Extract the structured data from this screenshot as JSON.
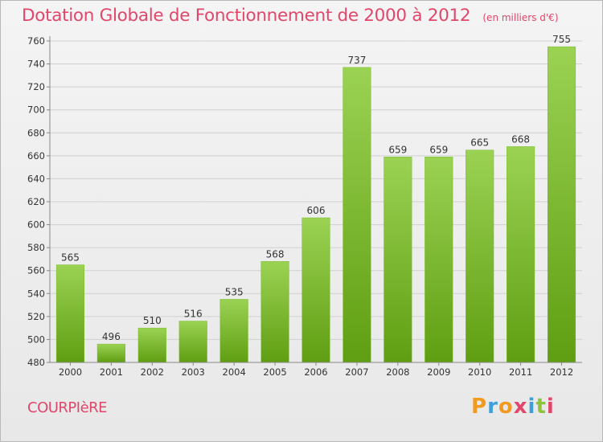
{
  "header": {
    "title": "Dotation Globale de Fonctionnement de 2000 à 2012",
    "unit": "(en milliers d'€)"
  },
  "footer": {
    "commune": "COURPIèRE",
    "logo": "Proxiti"
  },
  "colors": {
    "accent": "#e0476a",
    "bar_top": "#9bd253",
    "bar_bottom": "#5f9e12",
    "logo_letters": [
      "#f29a1f",
      "#3fa0d9",
      "#f29a1f",
      "#e0476a",
      "#3fa0d9",
      "#8cc43c",
      "#e0476a"
    ]
  },
  "chart_data": {
    "type": "bar",
    "title": "Dotation Globale de Fonctionnement de 2000 à 2012",
    "xlabel": "",
    "ylabel": "",
    "ylim": [
      480,
      760
    ],
    "yticks": [
      480,
      500,
      520,
      540,
      560,
      580,
      600,
      620,
      640,
      660,
      680,
      700,
      720,
      740,
      760
    ],
    "grid": true,
    "categories": [
      "2000",
      "2001",
      "2002",
      "2003",
      "2004",
      "2005",
      "2006",
      "2007",
      "2008",
      "2009",
      "2010",
      "2011",
      "2012"
    ],
    "values": [
      565,
      496,
      510,
      516,
      535,
      568,
      606,
      737,
      659,
      659,
      665,
      668,
      755
    ]
  }
}
